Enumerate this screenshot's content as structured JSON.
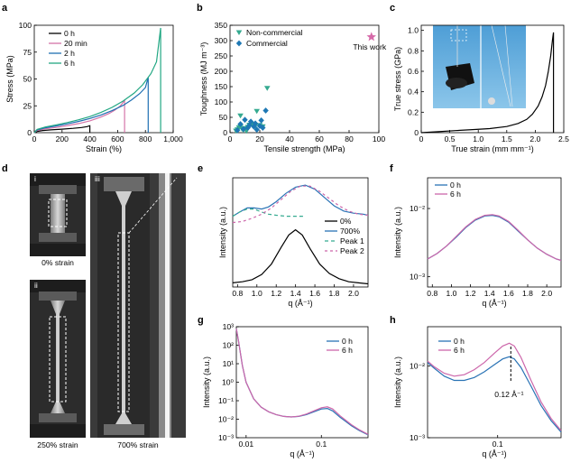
{
  "colors": {
    "c0h": "#000000",
    "c20": "#d474a8",
    "c2h": "#1f6fb2",
    "c6h": "#22a783",
    "blue": "#2a73b5",
    "pink": "#cc66aa",
    "teal": "#35aa90",
    "diamond": "#1e78b4",
    "star": "#d66aa9"
  },
  "panel_labels": [
    "a",
    "b",
    "c",
    "d",
    "e",
    "f",
    "g",
    "h"
  ],
  "photos": {
    "sub_i": "i",
    "sub_ii": "ii",
    "sub_iii": "iii",
    "cap_i": "0% strain",
    "cap_ii": "250% strain",
    "cap_iii": "700% strain"
  },
  "chart_data": [
    {
      "id": "a",
      "type": "line",
      "xlabel": "Strain (%)",
      "ylabel": "Stress (MPa)",
      "xlim": [
        0,
        1000
      ],
      "ylim": [
        0,
        100
      ],
      "xticks": [
        "0",
        "200",
        "400",
        "600",
        "800",
        "1,000"
      ],
      "xtick_values": [
        0,
        200,
        400,
        600,
        800,
        1000
      ],
      "yticks": [
        "0",
        "25",
        "50",
        "75",
        "100"
      ],
      "ytick_values": [
        0,
        25,
        50,
        75,
        100
      ],
      "series": [
        {
          "name": "0 h",
          "color": "c0h",
          "x": [
            0,
            20,
            60,
            120,
            200,
            280,
            340,
            380,
            400,
            400
          ],
          "y": [
            0,
            1.2,
            2,
            2.6,
            3.3,
            4,
            4.8,
            5.6,
            6.5,
            0
          ]
        },
        {
          "name": "20 min",
          "color": "c20",
          "x": [
            0,
            20,
            80,
            160,
            240,
            320,
            400,
            480,
            540,
            580,
            620,
            650,
            650
          ],
          "y": [
            0,
            2,
            3.6,
            5,
            6.6,
            8.5,
            11,
            14.5,
            18,
            21,
            25,
            30,
            0
          ]
        },
        {
          "name": "2 h",
          "color": "c2h",
          "x": [
            0,
            20,
            80,
            160,
            240,
            320,
            400,
            480,
            560,
            640,
            700,
            760,
            800,
            820,
            820
          ],
          "y": [
            0,
            2.5,
            4.5,
            6.3,
            8.2,
            10.5,
            13.2,
            16.5,
            20.5,
            25.5,
            30.5,
            36.5,
            42,
            51.5,
            0
          ]
        },
        {
          "name": "6 h",
          "color": "c6h",
          "x": [
            0,
            20,
            80,
            160,
            240,
            320,
            400,
            480,
            560,
            640,
            720,
            780,
            840,
            880,
            910,
            910
          ],
          "y": [
            0,
            3,
            5.3,
            7.3,
            9.5,
            12,
            15,
            18.8,
            23.5,
            29.5,
            37,
            44.5,
            55,
            66,
            97.5,
            0
          ]
        }
      ]
    },
    {
      "id": "b",
      "type": "scatter",
      "xlabel": "Tensile strength (MPa)",
      "ylabel": "Toughness (MJ m⁻³)",
      "xlim": [
        0,
        100
      ],
      "ylim": [
        0,
        350
      ],
      "xticks": [
        "0",
        "20",
        "40",
        "60",
        "80",
        "100"
      ],
      "xtick_values": [
        0,
        20,
        40,
        60,
        80,
        100
      ],
      "yticks": [
        "0",
        "50",
        "100",
        "150",
        "200",
        "250",
        "300",
        "350"
      ],
      "ytick_values": [
        0,
        50,
        100,
        150,
        200,
        250,
        300,
        350
      ],
      "series": [
        {
          "name": "Non-commercial",
          "marker": "triangle",
          "color": "teal",
          "x": [
            4,
            5,
            6,
            7,
            7,
            8,
            9,
            10,
            11,
            12,
            13,
            15,
            17,
            18,
            20,
            22,
            25
          ],
          "y": [
            6,
            10,
            16,
            20,
            55,
            12,
            8,
            14,
            5,
            18,
            25,
            28,
            22,
            70,
            24,
            20,
            145
          ]
        },
        {
          "name": "Commercial",
          "marker": "diamond",
          "color": "diamond",
          "x": [
            5,
            7,
            9,
            10,
            12,
            13,
            14,
            16,
            17,
            18,
            20,
            21,
            22,
            24
          ],
          "y": [
            8,
            28,
            12,
            42,
            16,
            24,
            36,
            20,
            30,
            10,
            22,
            40,
            16,
            72
          ]
        },
        {
          "name": "This work",
          "marker": "star",
          "color": "star",
          "x": [
            95
          ],
          "y": [
            312
          ]
        }
      ]
    },
    {
      "id": "c",
      "type": "line",
      "xlabel": "True strain (mm mm⁻¹)",
      "ylabel": "True stress (GPa)",
      "xlim": [
        0,
        2.5
      ],
      "ylim": [
        0,
        1.05
      ],
      "xticks": [
        "0",
        "0.5",
        "1.0",
        "1.5",
        "2.0",
        "2.5"
      ],
      "xtick_values": [
        0,
        0.5,
        1,
        1.5,
        2,
        2.5
      ],
      "yticks": [
        "0",
        "0.2",
        "0.4",
        "0.6",
        "0.8",
        "1.0"
      ],
      "ytick_values": [
        0,
        0.2,
        0.4,
        0.6,
        0.8,
        1.0
      ],
      "series": [
        {
          "name": "True stress",
          "color": "c0h",
          "x": [
            0,
            0.3,
            0.6,
            0.9,
            1.2,
            1.5,
            1.7,
            1.85,
            1.95,
            2.05,
            2.12,
            2.18,
            2.23,
            2.27,
            2.3,
            2.32,
            2.32
          ],
          "y": [
            0,
            0.01,
            0.02,
            0.03,
            0.04,
            0.06,
            0.09,
            0.13,
            0.18,
            0.26,
            0.35,
            0.46,
            0.6,
            0.75,
            0.9,
            0.98,
            0
          ]
        }
      ]
    },
    {
      "id": "e",
      "type": "line",
      "xlabel": "q (Å⁻¹)",
      "ylabel": "Intensity (a.u.)",
      "xlim": [
        0.75,
        2.15
      ],
      "xticks": [
        "0.8",
        "1.0",
        "1.2",
        "1.4",
        "1.6",
        "1.8",
        "2.0"
      ],
      "xtick_values": [
        0.8,
        1.0,
        1.2,
        1.4,
        1.6,
        1.8,
        2.0
      ],
      "series": [
        {
          "name": "0%",
          "color": "c0h",
          "dash": "",
          "x": [
            0.75,
            0.85,
            0.95,
            1.05,
            1.15,
            1.25,
            1.33,
            1.4,
            1.47,
            1.55,
            1.65,
            1.75,
            1.85,
            1.95,
            2.05,
            2.15
          ],
          "y": [
            0.04,
            0.05,
            0.07,
            0.12,
            0.22,
            0.38,
            0.5,
            0.55,
            0.5,
            0.37,
            0.22,
            0.13,
            0.08,
            0.05,
            0.04,
            0.03
          ]
        },
        {
          "name": "700%",
          "color": "blue",
          "dash": "",
          "x": [
            0.75,
            0.82,
            0.9,
            0.97,
            1.05,
            1.12,
            1.2,
            1.3,
            1.4,
            1.5,
            1.6,
            1.7,
            1.8,
            1.9,
            2.0,
            2.1,
            2.15
          ],
          "y": [
            0.68,
            0.72,
            0.76,
            0.76,
            0.75,
            0.77,
            0.82,
            0.9,
            0.96,
            0.98,
            0.94,
            0.86,
            0.78,
            0.73,
            0.71,
            0.7,
            0.69
          ]
        },
        {
          "name": "Peak 1",
          "color": "teal",
          "dash": "4 3",
          "x": [
            0.75,
            0.82,
            0.9,
            0.97,
            1.05,
            1.12,
            1.2,
            1.3,
            1.4,
            1.5
          ],
          "y": [
            0.68,
            0.72,
            0.75,
            0.75,
            0.72,
            0.7,
            0.69,
            0.68,
            0.68,
            0.68
          ]
        },
        {
          "name": "Peak 2",
          "color": "pink",
          "dash": "3 3",
          "x": [
            0.75,
            0.85,
            0.95,
            1.05,
            1.15,
            1.25,
            1.35,
            1.45,
            1.55,
            1.65,
            1.75,
            1.85,
            1.95,
            2.05,
            2.15
          ],
          "y": [
            0.62,
            0.63,
            0.66,
            0.7,
            0.76,
            0.84,
            0.92,
            0.97,
            0.97,
            0.92,
            0.85,
            0.78,
            0.73,
            0.7,
            0.69
          ]
        }
      ]
    },
    {
      "id": "f",
      "type": "line",
      "xlabel": "q (Å⁻¹)",
      "ylabel": "Intensity (a.u.)",
      "xlim": [
        0.75,
        2.15
      ],
      "ylim_log": [
        -3.15,
        -1.55
      ],
      "xticks": [
        "0.8",
        "1.0",
        "1.2",
        "1.4",
        "1.6",
        "1.8",
        "2.0"
      ],
      "xtick_values": [
        0.8,
        1.0,
        1.2,
        1.4,
        1.6,
        1.8,
        2.0
      ],
      "yticks": [
        "10⁻²",
        "10⁻³"
      ],
      "ytick_values": [
        -2,
        -3
      ],
      "series": [
        {
          "name": "0 h",
          "color": "blue",
          "x": [
            0.75,
            0.85,
            0.95,
            1.05,
            1.15,
            1.25,
            1.35,
            1.43,
            1.5,
            1.6,
            1.7,
            1.8,
            1.9,
            2.0,
            2.1,
            2.15
          ],
          "y": [
            -2.74,
            -2.66,
            -2.55,
            -2.42,
            -2.28,
            -2.17,
            -2.11,
            -2.1,
            -2.12,
            -2.2,
            -2.33,
            -2.46,
            -2.58,
            -2.67,
            -2.74,
            -2.76
          ]
        },
        {
          "name": "6 h",
          "color": "pink",
          "x": [
            0.75,
            0.85,
            0.95,
            1.05,
            1.15,
            1.25,
            1.35,
            1.43,
            1.5,
            1.6,
            1.7,
            1.8,
            1.9,
            2.0,
            2.1,
            2.15
          ],
          "y": [
            -2.74,
            -2.66,
            -2.55,
            -2.41,
            -2.27,
            -2.16,
            -2.1,
            -2.09,
            -2.11,
            -2.19,
            -2.32,
            -2.46,
            -2.58,
            -2.67,
            -2.74,
            -2.76
          ]
        }
      ]
    },
    {
      "id": "g",
      "type": "line",
      "xlabel": "q (Å⁻¹)",
      "ylabel": "Intensity (a.u.)",
      "xlim_log": [
        -2.13,
        -0.38
      ],
      "ylim_log": [
        -3,
        3
      ],
      "xticks": [
        "0.01",
        "0.1"
      ],
      "xtick_values": [
        -2,
        -1
      ],
      "yticks": [
        "10³",
        "10²",
        "10¹",
        "10⁰",
        "10⁻¹",
        "10⁻²",
        "10⁻³"
      ],
      "ytick_values": [
        3,
        2,
        1,
        0,
        -1,
        -2,
        -3
      ],
      "series": [
        {
          "name": "0 h",
          "color": "blue",
          "x": [
            -2.13,
            -2.1,
            -2.05,
            -2.0,
            -1.9,
            -1.8,
            -1.7,
            -1.6,
            -1.5,
            -1.4,
            -1.3,
            -1.2,
            -1.1,
            -1.0,
            -0.92,
            -0.85,
            -0.75,
            -0.6,
            -0.5,
            -0.38
          ],
          "y": [
            2.9,
            2.2,
            0.9,
            0.0,
            -0.9,
            -1.35,
            -1.6,
            -1.75,
            -1.85,
            -1.88,
            -1.85,
            -1.75,
            -1.6,
            -1.45,
            -1.42,
            -1.55,
            -1.9,
            -2.35,
            -2.6,
            -2.85
          ]
        },
        {
          "name": "6 h",
          "color": "pink",
          "x": [
            -2.13,
            -2.1,
            -2.05,
            -2.0,
            -1.9,
            -1.8,
            -1.7,
            -1.6,
            -1.5,
            -1.4,
            -1.3,
            -1.2,
            -1.1,
            -1.0,
            -0.92,
            -0.85,
            -0.75,
            -0.6,
            -0.5,
            -0.38
          ],
          "y": [
            2.9,
            2.2,
            0.9,
            0.0,
            -0.9,
            -1.35,
            -1.6,
            -1.75,
            -1.85,
            -1.88,
            -1.84,
            -1.72,
            -1.55,
            -1.38,
            -1.33,
            -1.45,
            -1.82,
            -2.3,
            -2.56,
            -2.82
          ]
        }
      ]
    },
    {
      "id": "h",
      "type": "line",
      "xlabel": "q (Å⁻¹)",
      "ylabel": "Intensity (a.u.)",
      "xlim_log": [
        -1.42,
        -0.62
      ],
      "ylim_log": [
        -3,
        -1.45
      ],
      "xticks": [
        "0.1"
      ],
      "xtick_values": [
        -1
      ],
      "yticks": [
        "10⁻²",
        "10⁻³"
      ],
      "ytick_values": [
        -2,
        -3
      ],
      "annotation": "0.12 Å⁻¹",
      "annotation_x": -0.921,
      "series": [
        {
          "name": "0 h",
          "color": "blue",
          "x": [
            -1.42,
            -1.38,
            -1.32,
            -1.26,
            -1.2,
            -1.14,
            -1.08,
            -1.02,
            -0.97,
            -0.93,
            -0.9,
            -0.86,
            -0.8,
            -0.74,
            -0.68,
            -0.62
          ],
          "y": [
            -1.95,
            -2.03,
            -2.14,
            -2.2,
            -2.2,
            -2.16,
            -2.08,
            -1.98,
            -1.9,
            -1.87,
            -1.9,
            -2.02,
            -2.28,
            -2.55,
            -2.76,
            -2.92
          ]
        },
        {
          "name": "6 h",
          "color": "pink",
          "x": [
            -1.42,
            -1.38,
            -1.32,
            -1.26,
            -1.2,
            -1.14,
            -1.08,
            -1.02,
            -0.97,
            -0.93,
            -0.9,
            -0.86,
            -0.8,
            -0.74,
            -0.68,
            -0.62
          ],
          "y": [
            -1.93,
            -2.01,
            -2.1,
            -2.14,
            -2.12,
            -2.05,
            -1.95,
            -1.82,
            -1.72,
            -1.68,
            -1.72,
            -1.88,
            -2.2,
            -2.5,
            -2.73,
            -2.9
          ]
        }
      ]
    }
  ]
}
